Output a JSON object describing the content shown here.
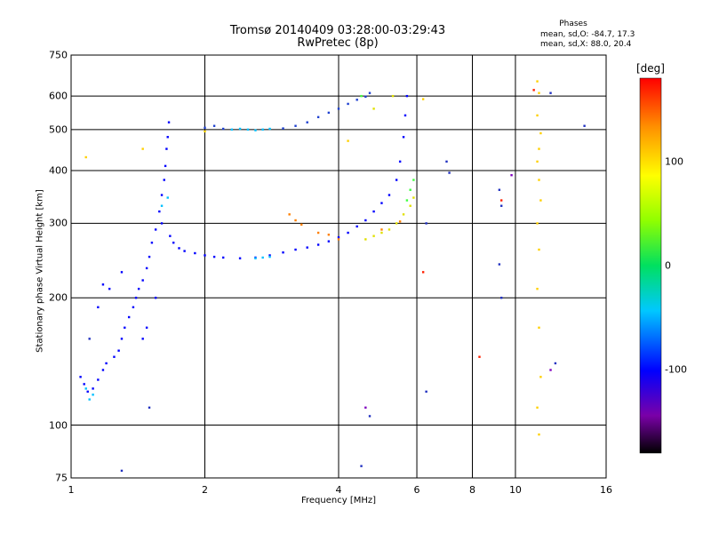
{
  "header": {
    "title": "Tromsø 20140409 03:28:00-03:29:43",
    "subtitle": "RwPretec (8p)",
    "phases_title": "Phases",
    "phases_o": "mean, sd,O: -84.7, 17.3",
    "phases_x": "mean, sd,X:  88.0, 20.4"
  },
  "chart_data": {
    "type": "scatter",
    "title": "Tromsø 20140409 03:28:00-03:29:43",
    "subtitle": "RwPretec (8p)",
    "xlabel": "Frequency [MHz]",
    "ylabel": "Stationary phase Virtual Height [km]",
    "x_scale": "log",
    "y_scale": "log",
    "xlim": [
      1,
      16
    ],
    "ylim": [
      75,
      750
    ],
    "x_ticks": [
      "1",
      "2",
      "4",
      "6",
      "8",
      "10",
      "16"
    ],
    "x_tick_values": [
      1,
      2,
      4,
      6,
      8,
      10,
      16
    ],
    "y_ticks": [
      "75",
      "100",
      "200",
      "300",
      "400",
      "500",
      "600",
      "750"
    ],
    "y_tick_values": [
      75,
      100,
      200,
      300,
      400,
      500,
      600,
      750
    ],
    "grid": true,
    "colorbar": {
      "label": "[deg]",
      "range": [
        -180,
        180
      ],
      "ticks": [
        "100",
        "0",
        "-100"
      ],
      "tick_values": [
        100,
        0,
        -100
      ]
    },
    "series": [
      {
        "color": "#0000ff",
        "phase": -110,
        "points": [
          [
            1.05,
            130
          ],
          [
            1.07,
            125
          ],
          [
            1.09,
            120
          ],
          [
            1.12,
            122
          ],
          [
            1.15,
            128
          ],
          [
            1.18,
            135
          ],
          [
            1.2,
            140
          ],
          [
            1.25,
            145
          ],
          [
            1.28,
            150
          ],
          [
            1.3,
            160
          ],
          [
            1.32,
            170
          ],
          [
            1.35,
            180
          ],
          [
            1.38,
            190
          ],
          [
            1.4,
            200
          ],
          [
            1.42,
            210
          ],
          [
            1.45,
            220
          ],
          [
            1.48,
            235
          ],
          [
            1.5,
            250
          ],
          [
            1.52,
            270
          ],
          [
            1.55,
            290
          ],
          [
            1.58,
            320
          ],
          [
            1.6,
            350
          ],
          [
            1.62,
            380
          ],
          [
            1.63,
            410
          ],
          [
            1.64,
            450
          ],
          [
            1.65,
            480
          ],
          [
            1.66,
            520
          ],
          [
            1.6,
            300
          ],
          [
            1.67,
            280
          ],
          [
            1.7,
            270
          ],
          [
            1.75,
            262
          ],
          [
            1.8,
            258
          ],
          [
            1.9,
            255
          ],
          [
            2.0,
            252
          ],
          [
            2.1,
            250
          ],
          [
            2.2,
            249
          ],
          [
            2.4,
            248
          ],
          [
            2.6,
            249
          ],
          [
            2.8,
            252
          ],
          [
            3.0,
            256
          ],
          [
            3.2,
            260
          ],
          [
            3.4,
            263
          ],
          [
            3.6,
            267
          ],
          [
            3.8,
            272
          ],
          [
            4.0,
            278
          ],
          [
            4.2,
            285
          ],
          [
            4.4,
            295
          ],
          [
            4.6,
            305
          ],
          [
            4.8,
            320
          ],
          [
            5.0,
            335
          ],
          [
            5.2,
            350
          ],
          [
            5.4,
            380
          ],
          [
            5.5,
            420
          ],
          [
            5.6,
            480
          ],
          [
            5.65,
            540
          ],
          [
            5.7,
            600
          ],
          [
            1.22,
            210
          ],
          [
            1.18,
            215
          ],
          [
            1.15,
            190
          ],
          [
            1.3,
            230
          ],
          [
            1.48,
            170
          ],
          [
            1.45,
            160
          ],
          [
            1.55,
            200
          ]
        ]
      },
      {
        "color": "#00c0ff",
        "phase": -50,
        "points": [
          [
            2.3,
            500
          ],
          [
            2.4,
            502
          ],
          [
            2.5,
            500
          ],
          [
            2.6,
            498
          ],
          [
            2.7,
            500
          ],
          [
            2.8,
            502
          ],
          [
            2.6,
            248
          ],
          [
            2.7,
            249
          ],
          [
            2.8,
            250
          ],
          [
            1.1,
            115
          ],
          [
            1.12,
            118
          ],
          [
            1.08,
            122
          ],
          [
            1.6,
            330
          ],
          [
            1.65,
            345
          ]
        ]
      },
      {
        "color": "#1e40d0",
        "phase": -90,
        "points": [
          [
            2.0,
            505
          ],
          [
            2.1,
            510
          ],
          [
            2.2,
            502
          ],
          [
            3.0,
            503
          ],
          [
            3.2,
            510
          ],
          [
            3.4,
            520
          ],
          [
            3.6,
            535
          ],
          [
            3.8,
            548
          ],
          [
            4.0,
            560
          ],
          [
            4.2,
            575
          ],
          [
            4.4,
            588
          ],
          [
            4.6,
            598
          ],
          [
            4.7,
            610
          ]
        ]
      },
      {
        "color": "#e0e000",
        "phase": 90,
        "points": [
          [
            4.6,
            275
          ],
          [
            4.8,
            280
          ],
          [
            5.0,
            285
          ],
          [
            5.2,
            290
          ],
          [
            5.4,
            300
          ],
          [
            5.6,
            315
          ],
          [
            5.8,
            330
          ],
          [
            5.9,
            345
          ],
          [
            4.8,
            560
          ],
          [
            5.3,
            600
          ]
        ]
      },
      {
        "color": "#ff8000",
        "phase": 140,
        "points": [
          [
            3.1,
            315
          ],
          [
            3.2,
            305
          ],
          [
            3.3,
            298
          ],
          [
            3.6,
            285
          ],
          [
            3.8,
            282
          ],
          [
            4.0,
            275
          ],
          [
            5.0,
            290
          ],
          [
            5.5,
            303
          ]
        ]
      },
      {
        "color": "#40ff40",
        "phase": 40,
        "points": [
          [
            5.8,
            360
          ],
          [
            5.7,
            340
          ],
          [
            5.9,
            380
          ],
          [
            4.5,
            600
          ]
        ]
      },
      {
        "color": "#ffd000",
        "phase": 110,
        "points": [
          [
            11.2,
            650
          ],
          [
            11.3,
            610
          ],
          [
            11.2,
            540
          ],
          [
            11.4,
            490
          ],
          [
            11.3,
            450
          ],
          [
            11.2,
            420
          ],
          [
            11.3,
            380
          ],
          [
            11.4,
            340
          ],
          [
            11.2,
            300
          ],
          [
            11.3,
            260
          ],
          [
            11.2,
            210
          ],
          [
            11.3,
            170
          ],
          [
            11.4,
            130
          ],
          [
            11.2,
            110
          ],
          [
            11.3,
            95
          ],
          [
            1.08,
            430
          ],
          [
            1.45,
            450
          ],
          [
            4.2,
            470
          ],
          [
            6.2,
            590
          ],
          [
            2.0,
            495
          ]
        ]
      },
      {
        "color": "#2030c0",
        "phase": -120,
        "points": [
          [
            9.2,
            360
          ],
          [
            9.3,
            330
          ],
          [
            9.2,
            240
          ],
          [
            9.3,
            200
          ],
          [
            7.1,
            395
          ],
          [
            7.0,
            420
          ],
          [
            6.3,
            300
          ],
          [
            6.3,
            120
          ],
          [
            4.5,
            80
          ],
          [
            4.7,
            105
          ],
          [
            12.0,
            610
          ],
          [
            12.3,
            140
          ],
          [
            14.3,
            510
          ],
          [
            1.1,
            160
          ],
          [
            1.3,
            78
          ],
          [
            1.5,
            110
          ]
        ]
      },
      {
        "color": "#ff2000",
        "phase": 160,
        "points": [
          [
            11.0,
            620
          ],
          [
            9.3,
            340
          ],
          [
            6.2,
            230
          ],
          [
            8.3,
            145
          ]
        ]
      },
      {
        "color": "#8000c0",
        "phase": -150,
        "points": [
          [
            12.0,
            135
          ],
          [
            9.8,
            390
          ],
          [
            4.6,
            110
          ]
        ]
      }
    ]
  }
}
